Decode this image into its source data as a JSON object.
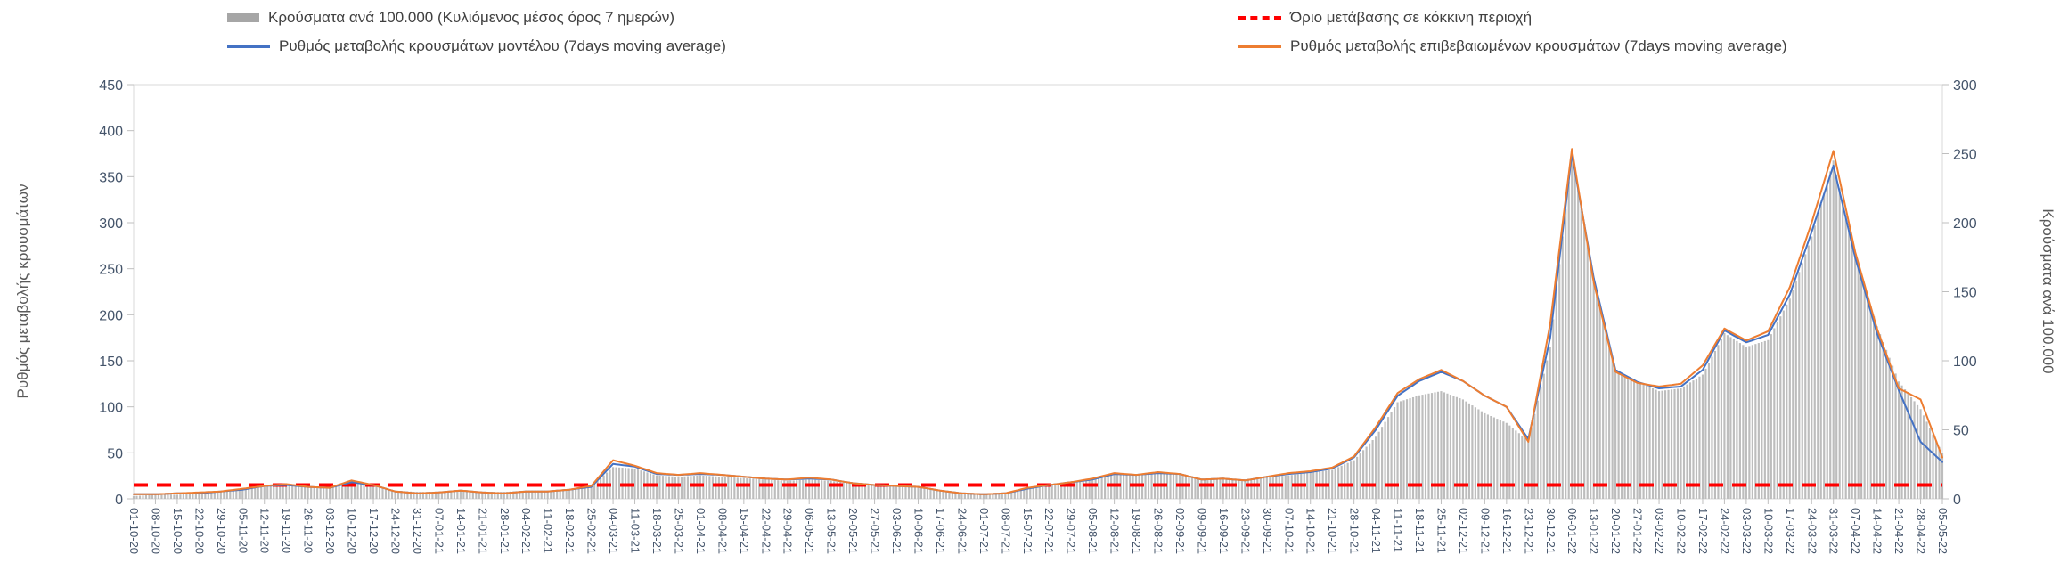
{
  "legend": {
    "items": [
      {
        "label": "Κρούσματα ανά 100.000 (Κυλιόμενος μέσος όρος 7 ημερών)",
        "swatch": "bar",
        "color": "#a6a6a6"
      },
      {
        "label": "Όριο μετάβασης σε κόκκινη περιοχή",
        "swatch": "dashed-line",
        "color": "#ff0000"
      },
      {
        "label": "Ρυθμός μεταβολής κρουσμάτων μοντέλου (7days moving average)",
        "swatch": "line",
        "color": "#4472c4"
      },
      {
        "label": "Ρυθμός μεταβολής επιβεβαιωμένων κρουσμάτων (7days moving average)",
        "swatch": "line",
        "color": "#ed7d31"
      }
    ]
  },
  "chart_data": {
    "type": "combo",
    "grid": false,
    "legend_position": "top",
    "categories": [
      "01-10-20",
      "08-10-20",
      "15-10-20",
      "22-10-20",
      "29-10-20",
      "05-11-20",
      "12-11-20",
      "19-11-20",
      "26-11-20",
      "03-12-20",
      "10-12-20",
      "17-12-20",
      "24-12-20",
      "31-12-20",
      "07-01-21",
      "14-01-21",
      "21-01-21",
      "28-01-21",
      "04-02-21",
      "11-02-21",
      "18-02-21",
      "25-02-21",
      "04-03-21",
      "11-03-21",
      "18-03-21",
      "25-03-21",
      "01-04-21",
      "08-04-21",
      "15-04-21",
      "22-04-21",
      "29-04-21",
      "06-05-21",
      "13-05-21",
      "20-05-21",
      "27-05-21",
      "03-06-21",
      "10-06-21",
      "17-06-21",
      "24-06-21",
      "01-07-21",
      "08-07-21",
      "15-07-21",
      "22-07-21",
      "29-07-21",
      "05-08-21",
      "12-08-21",
      "19-08-21",
      "26-08-21",
      "02-09-21",
      "09-09-21",
      "16-09-21",
      "23-09-21",
      "30-09-21",
      "07-10-21",
      "14-10-21",
      "21-10-21",
      "28-10-21",
      "04-11-21",
      "11-11-21",
      "18-11-21",
      "25-11-21",
      "02-12-21",
      "09-12-21",
      "16-12-21",
      "23-12-21",
      "30-12-21",
      "06-01-22",
      "13-01-22",
      "20-01-22",
      "27-01-22",
      "03-02-22",
      "10-02-22",
      "17-02-22",
      "24-02-22",
      "03-03-22",
      "10-03-22",
      "17-03-22",
      "24-03-22",
      "31-03-22",
      "07-04-22",
      "14-04-22",
      "21-04-22",
      "28-04-22",
      "05-05-22"
    ],
    "axes": {
      "left": {
        "label": "Ρυθμός μεταβολής κρουσμάτων",
        "min": 0,
        "max": 450,
        "step": 50
      },
      "right": {
        "label": "Κρούσματα ανά 100.000",
        "min": 0,
        "max": 300,
        "step": 50
      }
    },
    "series": [
      {
        "name": "Κρούσματα ανά 100.000 (Κυλιόμενος μέσος όρος 7 ημερών)",
        "type": "bar",
        "axis": "right",
        "color": "#bdbdbd",
        "values": [
          2,
          3,
          3,
          4,
          5,
          7,
          9,
          10,
          9,
          8,
          12,
          10,
          6,
          5,
          5,
          6,
          5,
          5,
          6,
          6,
          7,
          9,
          23,
          22,
          17,
          16,
          17,
          16,
          15,
          14,
          13,
          14,
          13,
          11,
          10,
          9,
          8,
          6,
          4,
          3,
          4,
          7,
          10,
          12,
          14,
          18,
          17,
          19,
          18,
          14,
          15,
          14,
          16,
          17,
          19,
          21,
          28,
          45,
          70,
          75,
          78,
          72,
          62,
          55,
          42,
          110,
          250,
          160,
          92,
          85,
          78,
          80,
          90,
          120,
          110,
          115,
          145,
          190,
          245,
          175,
          125,
          85,
          65,
          33
        ]
      },
      {
        "name": "Ρυθμός μεταβολής κρουσμάτων μοντέλου (7days moving average)",
        "type": "line",
        "axis": "left",
        "color": "#4472c4",
        "values": [
          5,
          5,
          6,
          6,
          8,
          10,
          14,
          15,
          13,
          12,
          18,
          15,
          8,
          6,
          7,
          9,
          7,
          6,
          8,
          8,
          10,
          13,
          38,
          35,
          27,
          26,
          27,
          26,
          24,
          22,
          21,
          22,
          21,
          17,
          15,
          14,
          13,
          9,
          6,
          5,
          6,
          11,
          15,
          18,
          21,
          27,
          26,
          28,
          27,
          21,
          22,
          20,
          24,
          27,
          29,
          33,
          45,
          75,
          112,
          128,
          138,
          128,
          112,
          100,
          65,
          175,
          375,
          240,
          140,
          127,
          120,
          122,
          140,
          183,
          170,
          178,
          222,
          290,
          362,
          262,
          180,
          118,
          62,
          40
        ]
      },
      {
        "name": "Ρυθμός μεταβολής επιβεβαιωμένων κρουσμάτων (7days moving average)",
        "type": "line",
        "axis": "left",
        "color": "#ed7d31",
        "values": [
          5,
          5,
          6,
          7,
          8,
          11,
          14,
          16,
          13,
          12,
          20,
          15,
          8,
          6,
          7,
          9,
          7,
          6,
          8,
          8,
          10,
          14,
          42,
          36,
          28,
          26,
          28,
          26,
          24,
          22,
          21,
          23,
          21,
          17,
          15,
          14,
          13,
          9,
          6,
          5,
          6,
          12,
          15,
          18,
          22,
          28,
          26,
          29,
          27,
          21,
          22,
          20,
          24,
          28,
          30,
          34,
          46,
          78,
          115,
          130,
          140,
          128,
          112,
          100,
          62,
          190,
          380,
          235,
          138,
          126,
          122,
          125,
          145,
          185,
          172,
          182,
          230,
          300,
          378,
          268,
          185,
          120,
          108,
          45
        ]
      },
      {
        "name": "Όριο μετάβασης σε κόκκινη περιοχή",
        "type": "threshold",
        "axis": "left",
        "value": 15,
        "color": "#ff0000"
      }
    ]
  }
}
